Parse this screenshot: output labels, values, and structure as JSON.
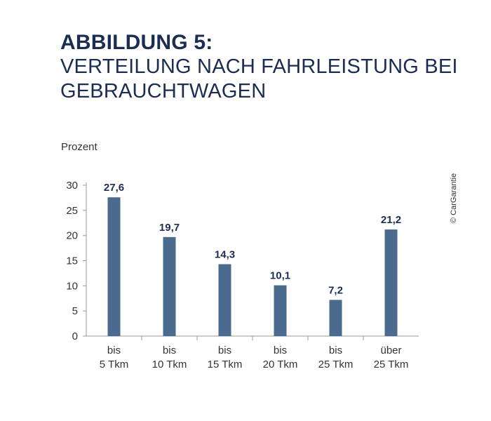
{
  "title": {
    "main": "ABBILDUNG 5:",
    "sub_line1": "VERTEILUNG NACH FAHRLEISTUNG BEI",
    "sub_line2": "GEBRAUCHTWAGEN"
  },
  "copyright": "© CarGarantie",
  "colors": {
    "bar": "#4a6b8e",
    "title": "#1b2d52",
    "axis": "#999999"
  },
  "chart_data": {
    "type": "bar",
    "ylabel": "Prozent",
    "xlabel": "",
    "ylim": [
      0,
      30
    ],
    "yticks": [
      0,
      5,
      10,
      15,
      20,
      25,
      30
    ],
    "grid": false,
    "categories": [
      [
        "bis",
        "5 Tkm"
      ],
      [
        "bis",
        "10 Tkm"
      ],
      [
        "bis",
        "15 Tkm"
      ],
      [
        "bis",
        "20 Tkm"
      ],
      [
        "bis",
        "25 Tkm"
      ],
      [
        "über",
        "25 Tkm"
      ]
    ],
    "values": [
      27.6,
      19.7,
      14.3,
      10.1,
      7.2,
      21.2
    ],
    "value_labels": [
      "27,6",
      "19,7",
      "14,3",
      "10,1",
      "7,2",
      "21,2"
    ]
  }
}
